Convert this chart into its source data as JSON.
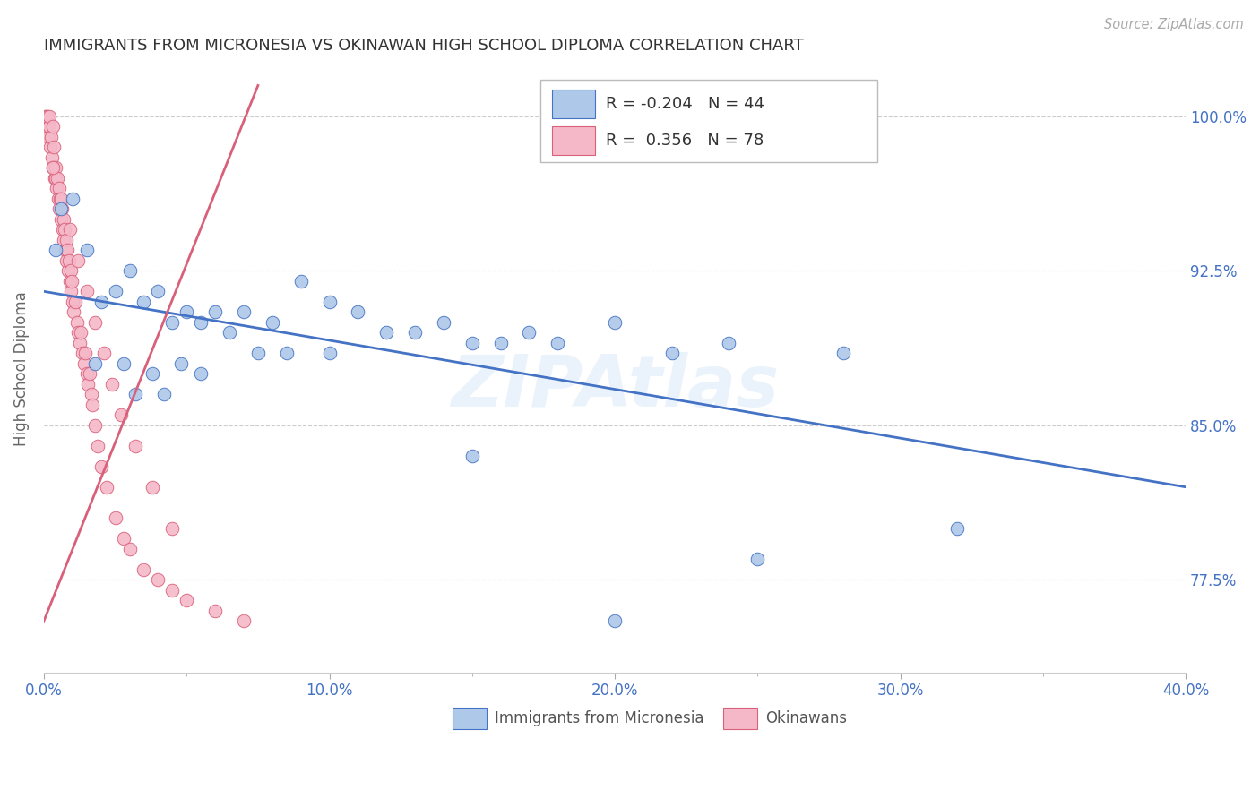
{
  "title": "IMMIGRANTS FROM MICRONESIA VS OKINAWAN HIGH SCHOOL DIPLOMA CORRELATION CHART",
  "source": "Source: ZipAtlas.com",
  "ylabel": "High School Diploma",
  "xlim": [
    0.0,
    40.0
  ],
  "ylim": [
    73.0,
    102.5
  ],
  "xtick_vals": [
    0,
    10,
    20,
    30,
    40
  ],
  "ytick_vals": [
    77.5,
    85.0,
    92.5,
    100.0
  ],
  "legend_blue_R": "-0.204",
  "legend_blue_N": "44",
  "legend_pink_R": "0.356",
  "legend_pink_N": "78",
  "blue_fill": "#adc8e8",
  "blue_edge": "#4472c4",
  "pink_fill": "#f5b8c8",
  "pink_edge": "#d9607a",
  "blue_line_color": "#4472c4",
  "pink_line_color": "#d9607a",
  "blue_scatter_x": [
    0.4,
    0.6,
    1.0,
    1.5,
    2.0,
    2.5,
    3.0,
    3.5,
    4.0,
    4.5,
    5.0,
    5.5,
    6.0,
    7.0,
    8.0,
    9.0,
    10.0,
    11.0,
    12.0,
    13.0,
    14.0,
    15.0,
    16.0,
    17.0,
    18.0,
    20.0,
    22.0,
    24.0,
    28.0,
    32.0,
    1.8,
    2.8,
    3.8,
    4.8,
    6.5,
    8.5,
    25.0,
    3.2,
    4.2,
    5.5,
    7.5,
    10.0,
    15.0,
    20.0
  ],
  "blue_scatter_y": [
    93.5,
    95.5,
    96.0,
    93.5,
    91.0,
    91.5,
    92.5,
    91.0,
    91.5,
    90.0,
    90.5,
    90.0,
    90.5,
    90.5,
    90.0,
    92.0,
    91.0,
    90.5,
    89.5,
    89.5,
    90.0,
    89.0,
    89.0,
    89.5,
    89.0,
    90.0,
    88.5,
    89.0,
    88.5,
    80.0,
    88.0,
    88.0,
    87.5,
    88.0,
    89.5,
    88.5,
    78.5,
    86.5,
    86.5,
    87.5,
    88.5,
    88.5,
    83.5,
    75.5
  ],
  "pink_scatter_x": [
    0.05,
    0.07,
    0.1,
    0.12,
    0.15,
    0.18,
    0.2,
    0.22,
    0.25,
    0.28,
    0.3,
    0.32,
    0.35,
    0.38,
    0.4,
    0.42,
    0.45,
    0.48,
    0.5,
    0.52,
    0.55,
    0.58,
    0.6,
    0.62,
    0.65,
    0.68,
    0.7,
    0.72,
    0.75,
    0.78,
    0.8,
    0.82,
    0.85,
    0.88,
    0.9,
    0.93,
    0.95,
    0.98,
    1.0,
    1.05,
    1.1,
    1.15,
    1.2,
    1.25,
    1.3,
    1.35,
    1.4,
    1.45,
    1.5,
    1.55,
    1.6,
    1.65,
    1.7,
    1.8,
    1.9,
    2.0,
    2.2,
    2.5,
    2.8,
    3.0,
    3.5,
    4.0,
    4.5,
    5.0,
    6.0,
    7.0,
    0.3,
    0.6,
    0.9,
    1.2,
    1.5,
    1.8,
    2.1,
    2.4,
    2.7,
    3.2,
    3.8,
    4.5
  ],
  "pink_scatter_y": [
    100.0,
    100.0,
    99.5,
    100.0,
    99.0,
    99.5,
    100.0,
    98.5,
    99.0,
    98.0,
    99.5,
    97.5,
    98.5,
    97.0,
    97.5,
    97.0,
    96.5,
    97.0,
    96.0,
    96.5,
    95.5,
    96.0,
    95.0,
    95.5,
    94.5,
    95.0,
    94.0,
    94.5,
    93.5,
    94.0,
    93.0,
    93.5,
    92.5,
    93.0,
    92.0,
    92.5,
    91.5,
    92.0,
    91.0,
    90.5,
    91.0,
    90.0,
    89.5,
    89.0,
    89.5,
    88.5,
    88.0,
    88.5,
    87.5,
    87.0,
    87.5,
    86.5,
    86.0,
    85.0,
    84.0,
    83.0,
    82.0,
    80.5,
    79.5,
    79.0,
    78.0,
    77.5,
    77.0,
    76.5,
    76.0,
    75.5,
    97.5,
    96.0,
    94.5,
    93.0,
    91.5,
    90.0,
    88.5,
    87.0,
    85.5,
    84.0,
    82.0,
    80.0
  ],
  "blue_trend_x": [
    0.0,
    40.0
  ],
  "blue_trend_y": [
    91.5,
    82.0
  ],
  "pink_trend_x": [
    0.0,
    7.5
  ],
  "pink_trend_y": [
    75.5,
    101.5
  ],
  "watermark": "ZIPAtlas",
  "bg": "#ffffff",
  "grid_color": "#cccccc",
  "title_color": "#333333",
  "ylabel_color": "#666666",
  "tick_color": "#4472c4",
  "legend_label_blue": "Immigrants from Micronesia",
  "legend_label_pink": "Okinawans"
}
